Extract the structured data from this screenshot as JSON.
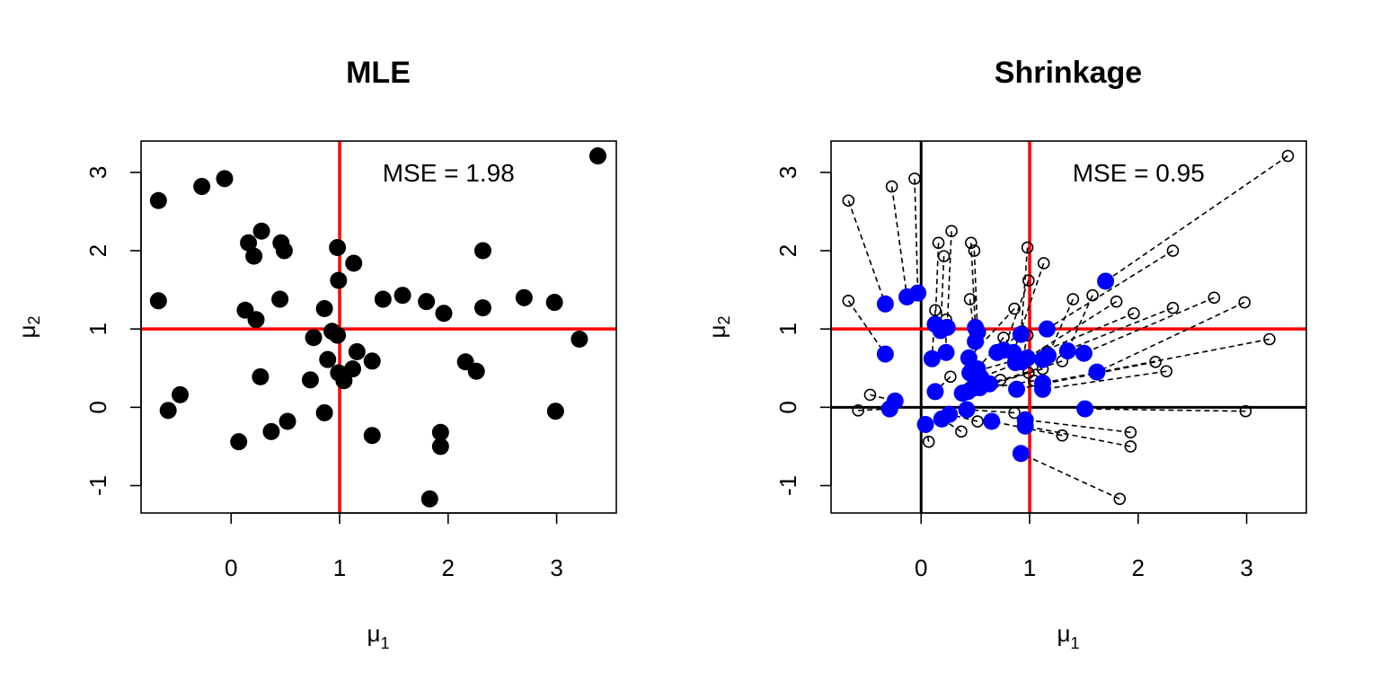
{
  "chart_data": [
    {
      "type": "scatter",
      "title": "MLE",
      "xlabel": {
        "base": "μ",
        "sub": "1"
      },
      "ylabel": {
        "base": "μ",
        "sub": "2"
      },
      "annotation": "MSE = 1.98",
      "xlim": [
        -0.83,
        3.55
      ],
      "ylim": [
        -1.35,
        3.4
      ],
      "xticks": [
        "0",
        "1",
        "2",
        "3"
      ],
      "yticks": [
        "-1",
        "0",
        "1",
        "2",
        "3"
      ],
      "reference_lines": {
        "vertical": 1,
        "horizontal": 1,
        "color": "#ff0000"
      },
      "marker": {
        "style": "filled-circle",
        "color": "#000000"
      },
      "series": [
        {
          "values": [
            [
              3.38,
              3.21
            ],
            [
              -0.06,
              2.92
            ],
            [
              -0.27,
              2.82
            ],
            [
              -0.67,
              2.64
            ],
            [
              0.28,
              2.25
            ],
            [
              0.16,
              2.1
            ],
            [
              0.46,
              2.1
            ],
            [
              0.98,
              2.04
            ],
            [
              2.32,
              2.0
            ],
            [
              0.49,
              2.0
            ],
            [
              0.21,
              1.93
            ],
            [
              1.13,
              1.84
            ],
            [
              0.99,
              1.62
            ],
            [
              1.58,
              1.43
            ],
            [
              2.7,
              1.4
            ],
            [
              1.4,
              1.38
            ],
            [
              0.45,
              1.38
            ],
            [
              1.8,
              1.35
            ],
            [
              2.98,
              1.34
            ],
            [
              -0.67,
              1.36
            ],
            [
              2.32,
              1.27
            ],
            [
              0.86,
              1.26
            ],
            [
              0.13,
              1.24
            ],
            [
              1.96,
              1.2
            ],
            [
              0.23,
              1.12
            ],
            [
              0.93,
              0.97
            ],
            [
              0.98,
              0.92
            ],
            [
              0.76,
              0.89
            ],
            [
              3.21,
              0.87
            ],
            [
              1.16,
              0.71
            ],
            [
              0.89,
              0.61
            ],
            [
              1.3,
              0.59
            ],
            [
              2.16,
              0.58
            ],
            [
              1.12,
              0.49
            ],
            [
              2.26,
              0.46
            ],
            [
              0.99,
              0.44
            ],
            [
              0.27,
              0.39
            ],
            [
              0.73,
              0.35
            ],
            [
              1.04,
              0.34
            ],
            [
              -0.47,
              0.16
            ],
            [
              -0.58,
              -0.04
            ],
            [
              2.99,
              -0.05
            ],
            [
              0.86,
              -0.07
            ],
            [
              0.52,
              -0.18
            ],
            [
              0.37,
              -0.31
            ],
            [
              1.93,
              -0.32
            ],
            [
              1.3,
              -0.36
            ],
            [
              0.07,
              -0.44
            ],
            [
              1.93,
              -0.5
            ],
            [
              1.83,
              -1.17
            ]
          ]
        }
      ]
    },
    {
      "type": "scatter",
      "title": "Shrinkage",
      "xlabel": {
        "base": "μ",
        "sub": "1"
      },
      "ylabel": {
        "base": "μ",
        "sub": "2"
      },
      "annotation": "MSE = 0.95",
      "xlim": [
        -0.83,
        3.55
      ],
      "ylim": [
        -1.35,
        3.4
      ],
      "xticks": [
        "0",
        "1",
        "2",
        "3"
      ],
      "yticks": [
        "-1",
        "0",
        "1",
        "2",
        "3"
      ],
      "reference_lines": {
        "vertical": 1,
        "horizontal": 1,
        "color": "#ff0000"
      },
      "axis_lines": {
        "vertical": 0,
        "horizontal": 0,
        "color": "#000000"
      },
      "marker": {
        "mle": "open-circle",
        "shrunk": "filled-circle",
        "shrunk_color": "#0000ff",
        "link": "dashed"
      },
      "pairs": [
        {
          "mle": [
            3.38,
            3.21
          ],
          "shrunk": [
            1.7,
            1.61
          ]
        },
        {
          "mle": [
            -0.06,
            2.92
          ],
          "shrunk": [
            -0.03,
            1.46
          ]
        },
        {
          "mle": [
            -0.27,
            2.82
          ],
          "shrunk": [
            -0.13,
            1.41
          ]
        },
        {
          "mle": [
            -0.67,
            2.64
          ],
          "shrunk": [
            -0.33,
            1.32
          ]
        },
        {
          "mle": [
            0.28,
            2.25
          ],
          "shrunk": [
            0.24,
            1.02
          ]
        },
        {
          "mle": [
            0.16,
            2.1
          ],
          "shrunk": [
            0.13,
            1.06
          ]
        },
        {
          "mle": [
            0.46,
            2.1
          ],
          "shrunk": [
            0.5,
            1.02
          ]
        },
        {
          "mle": [
            0.98,
            2.04
          ],
          "shrunk": [
            0.92,
            0.93
          ]
        },
        {
          "mle": [
            2.32,
            2.0
          ],
          "shrunk": [
            1.16,
            1.0
          ]
        },
        {
          "mle": [
            0.49,
            2.0
          ],
          "shrunk": [
            0.52,
            0.96
          ]
        },
        {
          "mle": [
            0.21,
            1.93
          ],
          "shrunk": [
            0.18,
            0.98
          ]
        },
        {
          "mle": [
            1.13,
            1.84
          ],
          "shrunk": [
            0.85,
            0.7
          ]
        },
        {
          "mle": [
            0.99,
            1.62
          ],
          "shrunk": [
            0.76,
            0.73
          ]
        },
        {
          "mle": [
            1.58,
            1.43
          ],
          "shrunk": [
            1.35,
            0.72
          ]
        },
        {
          "mle": [
            2.7,
            1.4
          ],
          "shrunk": [
            1.5,
            0.69
          ]
        },
        {
          "mle": [
            1.4,
            1.38
          ],
          "shrunk": [
            1.17,
            0.66
          ]
        },
        {
          "mle": [
            0.45,
            1.38
          ],
          "shrunk": [
            0.5,
            0.84
          ]
        },
        {
          "mle": [
            1.8,
            1.35
          ],
          "shrunk": [
            0.98,
            0.63
          ]
        },
        {
          "mle": [
            2.98,
            1.34
          ],
          "shrunk": [
            1.62,
            0.45
          ]
        },
        {
          "mle": [
            -0.67,
            1.36
          ],
          "shrunk": [
            -0.33,
            0.68
          ]
        },
        {
          "mle": [
            2.32,
            1.27
          ],
          "shrunk": [
            1.12,
            0.61
          ]
        },
        {
          "mle": [
            0.86,
            1.26
          ],
          "shrunk": [
            0.44,
            0.63
          ]
        },
        {
          "mle": [
            0.13,
            1.24
          ],
          "shrunk": [
            0.1,
            0.62
          ]
        },
        {
          "mle": [
            1.96,
            1.2
          ],
          "shrunk": [
            0.87,
            0.57
          ]
        },
        {
          "mle": [
            0.23,
            1.12
          ],
          "shrunk": [
            0.23,
            0.7
          ]
        },
        {
          "mle": [
            0.93,
            0.97
          ],
          "shrunk": [
            0.7,
            0.7
          ]
        },
        {
          "mle": [
            0.98,
            0.92
          ],
          "shrunk": [
            0.93,
            0.58
          ]
        },
        {
          "mle": [
            0.76,
            0.89
          ],
          "shrunk": [
            0.52,
            0.49
          ]
        },
        {
          "mle": [
            3.21,
            0.87
          ],
          "shrunk": [
            1.12,
            0.31
          ]
        },
        {
          "mle": [
            1.16,
            0.71
          ],
          "shrunk": [
            0.55,
            0.38
          ]
        },
        {
          "mle": [
            0.89,
            0.61
          ],
          "shrunk": [
            0.45,
            0.44
          ]
        },
        {
          "mle": [
            1.3,
            0.59
          ],
          "shrunk": [
            0.63,
            0.3
          ]
        },
        {
          "mle": [
            2.16,
            0.58
          ],
          "shrunk": [
            0.88,
            0.23
          ]
        },
        {
          "mle": [
            1.12,
            0.49
          ],
          "shrunk": [
            0.54,
            0.25
          ]
        },
        {
          "mle": [
            2.26,
            0.46
          ],
          "shrunk": [
            1.12,
            0.23
          ]
        },
        {
          "mle": [
            0.99,
            0.44
          ],
          "shrunk": [
            0.47,
            0.24
          ]
        },
        {
          "mle": [
            0.27,
            0.39
          ],
          "shrunk": [
            0.13,
            0.2
          ]
        },
        {
          "mle": [
            0.73,
            0.35
          ],
          "shrunk": [
            0.38,
            0.18
          ]
        },
        {
          "mle": [
            1.04,
            0.34
          ],
          "shrunk": [
            0.43,
            0.2
          ]
        },
        {
          "mle": [
            -0.47,
            0.16
          ],
          "shrunk": [
            -0.24,
            0.08
          ]
        },
        {
          "mle": [
            -0.58,
            -0.04
          ],
          "shrunk": [
            -0.29,
            -0.02
          ]
        },
        {
          "mle": [
            2.99,
            -0.05
          ],
          "shrunk": [
            1.51,
            -0.02
          ]
        },
        {
          "mle": [
            0.86,
            -0.07
          ],
          "shrunk": [
            0.42,
            -0.03
          ]
        },
        {
          "mle": [
            0.52,
            -0.18
          ],
          "shrunk": [
            0.26,
            -0.09
          ]
        },
        {
          "mle": [
            0.37,
            -0.31
          ],
          "shrunk": [
            0.19,
            -0.15
          ]
        },
        {
          "mle": [
            1.93,
            -0.32
          ],
          "shrunk": [
            0.96,
            -0.16
          ]
        },
        {
          "mle": [
            1.3,
            -0.36
          ],
          "shrunk": [
            0.65,
            -0.18
          ]
        },
        {
          "mle": [
            0.07,
            -0.44
          ],
          "shrunk": [
            0.04,
            -0.22
          ]
        },
        {
          "mle": [
            1.93,
            -0.5
          ],
          "shrunk": [
            0.96,
            -0.24
          ]
        },
        {
          "mle": [
            1.83,
            -1.17
          ],
          "shrunk": [
            0.92,
            -0.59
          ]
        }
      ]
    }
  ]
}
